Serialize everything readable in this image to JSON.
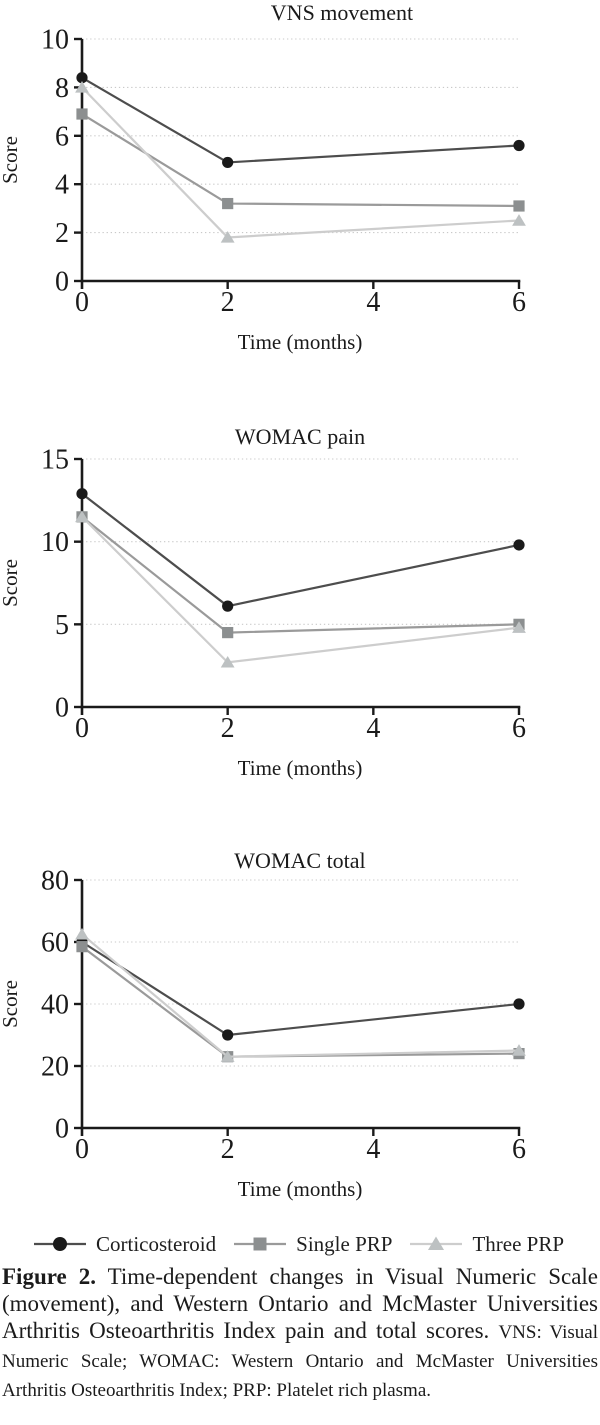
{
  "figure": {
    "legend": {
      "items": [
        {
          "label": "Corticosteroid",
          "marker": "circle",
          "color": "#1a1a1a",
          "line_color": "#4d4d4d"
        },
        {
          "label": "Single PRP",
          "marker": "square",
          "color": "#8c8f90",
          "line_color": "#9a9a9a"
        },
        {
          "label": "Three PRP",
          "marker": "triangle",
          "color": "#bdc1c2",
          "line_color": "#cdcdcd"
        }
      ]
    },
    "caption": {
      "label": "Figure 2.",
      "main": "Time-dependent changes in Visual Numeric Scale (movement), and Western Ontario and McMaster Universities Arthritis Osteoarthritis Index pain and total scores.",
      "abbreviations": "VNS: Visual Numeric Scale; WOMAC: Western Ontario and McMaster Universities Arthritis Osteoarthritis Index; PRP: Platelet rich plasma."
    },
    "colors": {
      "axis": "#1a1a1a",
      "grid": "#c9c9c9",
      "text": "#1a1a1a"
    }
  },
  "chart_data": [
    {
      "type": "line",
      "title": "VNS movement",
      "xlabel": "Time (months)",
      "ylabel": "Score",
      "x": [
        0,
        2,
        6
      ],
      "xticks": [
        0,
        2,
        4,
        6
      ],
      "xlim": [
        0,
        6
      ],
      "ylim": [
        0,
        10
      ],
      "yticks": [
        0,
        2,
        4,
        6,
        8,
        10
      ],
      "grid": "horizontal-dotted",
      "series": [
        {
          "name": "Corticosteroid",
          "values": [
            8.4,
            4.9,
            5.6
          ]
        },
        {
          "name": "Single PRP",
          "values": [
            6.9,
            3.2,
            3.1
          ]
        },
        {
          "name": "Three PRP",
          "values": [
            8.0,
            1.8,
            2.5
          ]
        }
      ]
    },
    {
      "type": "line",
      "title": "WOMAC pain",
      "xlabel": "Time (months)",
      "ylabel": "Score",
      "x": [
        0,
        2,
        6
      ],
      "xticks": [
        0,
        2,
        4,
        6
      ],
      "xlim": [
        0,
        6
      ],
      "ylim": [
        0,
        15
      ],
      "yticks": [
        0,
        5,
        10,
        15
      ],
      "grid": "horizontal-dotted",
      "series": [
        {
          "name": "Corticosteroid",
          "values": [
            12.9,
            6.1,
            9.8
          ]
        },
        {
          "name": "Single PRP",
          "values": [
            11.5,
            4.5,
            5.0
          ]
        },
        {
          "name": "Three PRP",
          "values": [
            11.5,
            2.7,
            4.8
          ]
        }
      ]
    },
    {
      "type": "line",
      "title": "WOMAC total",
      "xlabel": "Time (months)",
      "ylabel": "Score",
      "x": [
        0,
        2,
        6
      ],
      "xticks": [
        0,
        2,
        4,
        6
      ],
      "xlim": [
        0,
        6
      ],
      "ylim": [
        0,
        80
      ],
      "yticks": [
        0,
        20,
        40,
        60,
        80
      ],
      "grid": "horizontal-dotted",
      "series": [
        {
          "name": "Corticosteroid",
          "values": [
            60,
            30,
            40
          ]
        },
        {
          "name": "Single PRP",
          "values": [
            58.5,
            23,
            24
          ]
        },
        {
          "name": "Three PRP",
          "values": [
            62.5,
            23,
            25
          ]
        }
      ]
    }
  ]
}
